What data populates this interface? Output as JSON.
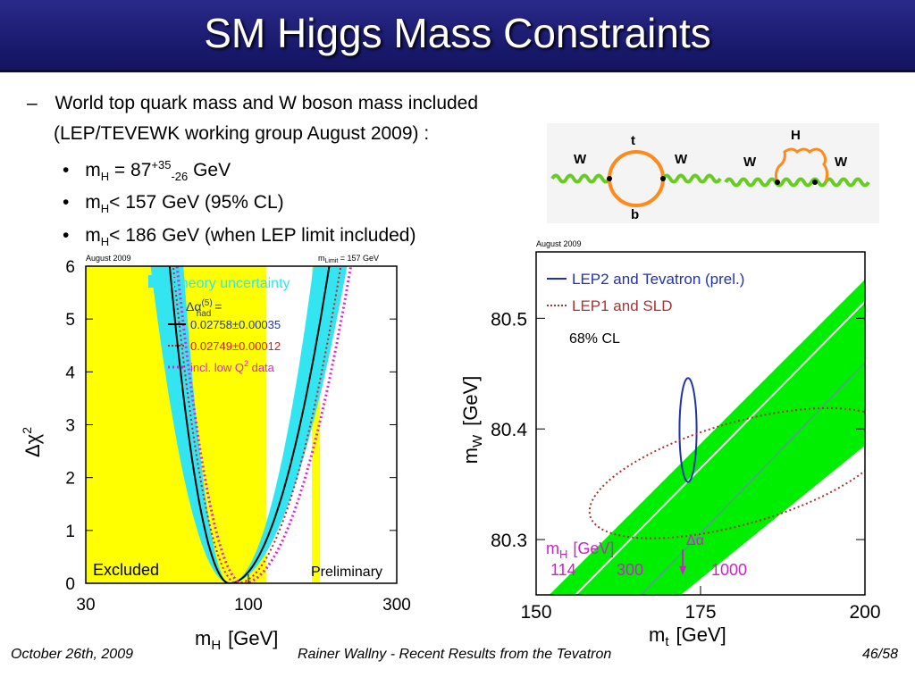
{
  "slide": {
    "title": "SM Higgs Mass Constraints",
    "dash": "–",
    "bullet_char": "•",
    "line1": "World top quark mass and W boson mass included",
    "line2": "(LEP/TEVEWK working group August 2009) :",
    "b1": {
      "a": "m",
      "sub1": "H",
      "b": " = 87",
      "sup": "+35",
      "sub2": "-26",
      "c": " GeV"
    },
    "b2": {
      "a": "m",
      "sub": "H",
      "b": "< 157 GeV (95% CL)"
    },
    "b3": {
      "a": "m",
      "sub": "H",
      "b": "< 186 GeV (when LEP limit included)"
    }
  },
  "footer": {
    "date": "October 26th, 2009",
    "center": "Rainer Wallny - Recent Results from the Tevatron",
    "page": "46/58"
  },
  "diagram": {
    "w_label": "W",
    "t_label": "t",
    "b_label": "b",
    "h_label": "H"
  },
  "chart_data": [
    {
      "type": "line",
      "name": "blueband",
      "corner_label": "August 2009",
      "limit_label": "m",
      "limit_sub": "Limit",
      "limit_value": " = 157 GeV",
      "x_scale": "log",
      "xlim": [
        30,
        300
      ],
      "ylim": [
        0,
        6
      ],
      "xlabel": "m",
      "xlabel_sub": "H",
      "xlabel_unit": "[GeV]",
      "ylabel": "Δχ",
      "ylabel_sup": "2",
      "xticks": [
        30,
        100,
        300
      ],
      "yticks": [
        0,
        1,
        2,
        3,
        4,
        5,
        6
      ],
      "excluded_regions": [
        [
          30,
          114.4
        ],
        [
          160,
          170
        ]
      ],
      "excluded_color": "#ffff00",
      "band_color": "#33e5f0",
      "minimum_x": 87,
      "minimum_y": 0,
      "delta95_up": 70,
      "delta95_down": 26,
      "legend": {
        "band": "Theory uncertainty",
        "alpha_head": "Δα",
        "alpha_sup": "(5)",
        "alpha_sub": "had",
        "alpha_eq": " =",
        "solid": "0.02758±0.00035",
        "dotted": "0.02749±0.00012",
        "lowq_pre": "incl. low Q",
        "lowq_sup": "2",
        "lowq_post": " data"
      },
      "excluded_text": "Excluded",
      "prelim_text": "Preliminary",
      "series": [
        {
          "name": "0.02758±0.00035",
          "style": "solid",
          "color": "#000000",
          "center": 87,
          "left_width": 26,
          "right_width": 70
        },
        {
          "name": "0.02749±0.00012",
          "style": "dotted",
          "color": "#cc2222",
          "center": 92,
          "left_width": 29,
          "right_width": 78
        },
        {
          "name": "incl. low Q2 data",
          "style": "dotted",
          "color": "#dd22dd",
          "center": 96,
          "left_width": 31,
          "right_width": 86
        }
      ]
    },
    {
      "type": "area",
      "name": "mw-mt",
      "corner_label": "August 2009",
      "xlim": [
        150,
        200
      ],
      "ylim": [
        80.25,
        80.56
      ],
      "xticks": [
        150,
        175,
        200
      ],
      "yticks": [
        80.3,
        80.4,
        80.5
      ],
      "xlabel": "m",
      "xlabel_sub": "t",
      "xlabel_unit": "[GeV]",
      "ylabel": "m",
      "ylabel_sub": "W",
      "ylabel_unit": "[GeV]",
      "legend": [
        {
          "label": "LEP2 and Tevatron (prel.)",
          "color": "#2233aa",
          "style": "solid"
        },
        {
          "label": "LEP1 and SLD",
          "color": "#aa3333",
          "style": "dotted"
        }
      ],
      "cl_label": "68% CL",
      "band_color": "#00ee00",
      "mh_label": "m",
      "mh_sub": "H",
      "mh_unit": "[GeV]",
      "mh_values": [
        "114",
        "300",
        "1000"
      ],
      "mh_color": "#cc22cc",
      "delta_alpha": "Δα",
      "direct_ellipse": {
        "center": [
          173.1,
          80.399
        ],
        "semi_x": 1.3,
        "semi_y": 0.047,
        "color": "#2233aa"
      },
      "indirect_ellipse": {
        "center": [
          181,
          80.36
        ],
        "semi_x": 23.7,
        "semi_y": 0.046,
        "tilt_deg": 16,
        "color": "#aa3333"
      }
    }
  ]
}
